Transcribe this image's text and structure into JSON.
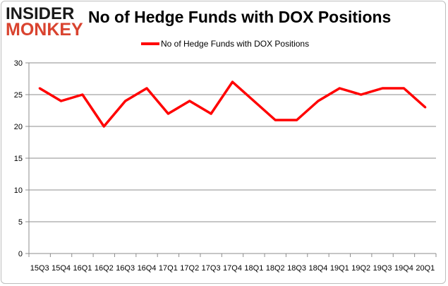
{
  "logo": {
    "line1": "INSIDER",
    "line2": "MONKEY"
  },
  "chart_data": {
    "type": "line",
    "title": "No of Hedge Funds with DOX Positions",
    "xlabel": "",
    "ylabel": "",
    "categories": [
      "15Q3",
      "15Q4",
      "16Q1",
      "16Q2",
      "16Q3",
      "16Q4",
      "17Q1",
      "17Q2",
      "17Q3",
      "17Q4",
      "18Q1",
      "18Q2",
      "18Q3",
      "18Q4",
      "19Q1",
      "19Q2",
      "19Q3",
      "19Q4",
      "20Q1"
    ],
    "series": [
      {
        "name": "No of Hedge Funds with DOX Positions",
        "color": "#ff0000",
        "values": [
          26,
          24,
          25,
          20,
          24,
          26,
          22,
          24,
          22,
          27,
          24,
          21,
          21,
          24,
          26,
          25,
          26,
          26,
          23
        ]
      }
    ],
    "ylim": [
      0,
      30
    ],
    "yticks": [
      0,
      5,
      10,
      15,
      20,
      25,
      30
    ],
    "grid": true,
    "legend": "top"
  }
}
